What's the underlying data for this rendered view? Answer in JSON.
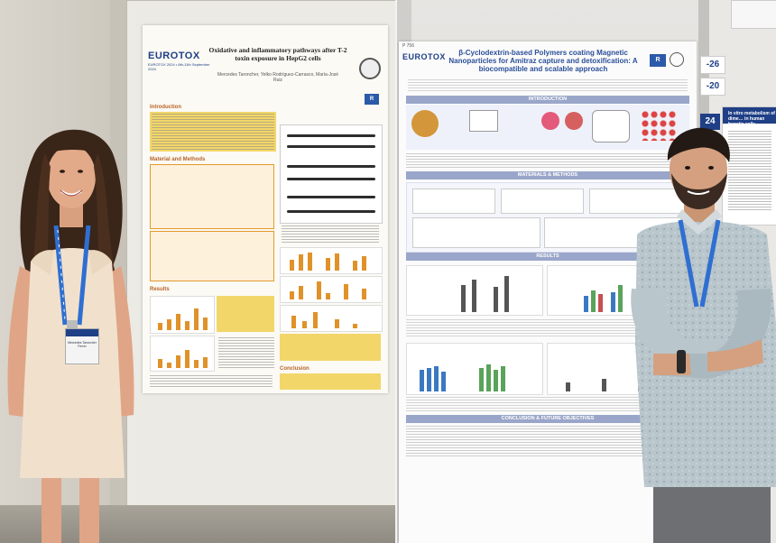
{
  "left_poster": {
    "logo": "EUROTOX",
    "logo_sub": "EUROTOX 2024 • 8th-11th September 2024",
    "title": "Oxidative and inflammatory pathways after T-2 toxin exposure in HepG2 cells",
    "authors": "Mercedes Taroncher, Yelko Rodríguez-Carrasco, María-José Ruiz",
    "sections": {
      "introduction": "Introduction",
      "materials": "Material and Methods",
      "results": "Results",
      "conclusion": "Conclusion"
    }
  },
  "right_poster": {
    "board_number": "P 756",
    "logo": "EUROTOX",
    "title": "β-Cyclodextrin-based Polymers coating Magnetic Nanoparticles for Amitraz capture and detoxification: A biocompatible and scalable approach",
    "sections": {
      "introduction": "INTRODUCTION",
      "materials": "MATERIALS & METHODS",
      "results": "RESULTS",
      "conclusion": "CONCLUSION & FUTURE OBJECTIVES"
    }
  },
  "side_board": {
    "numbers": [
      "-26",
      "-20",
      "24"
    ],
    "poster_text": "In vitro metabolism of dime… in human hepatic cells…"
  },
  "badge": {
    "name": "Mercedes Taroncher Ferrer"
  },
  "colors": {
    "lanyard": "#2f6fd1",
    "eurotox_blue": "#1f3f86",
    "accent_orange": "#e39a2d",
    "highlight_yellow": "#f3d66a"
  }
}
